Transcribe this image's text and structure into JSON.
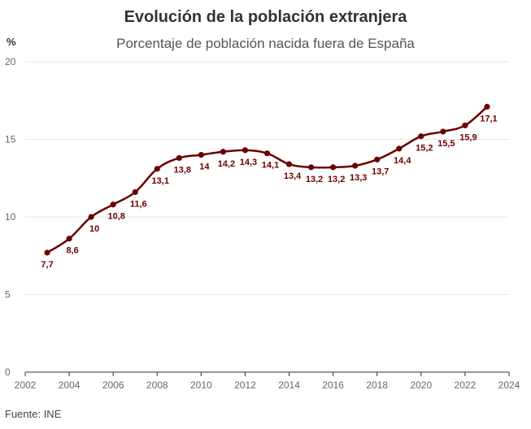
{
  "chart_data": {
    "type": "line",
    "title": "Evolución de la población extranjera",
    "subtitle": "Porcentaje de población nacida fuera de España",
    "ylabel": "%",
    "xlabel": "",
    "x": [
      2003,
      2004,
      2005,
      2006,
      2007,
      2008,
      2009,
      2010,
      2011,
      2012,
      2013,
      2014,
      2015,
      2016,
      2017,
      2018,
      2019,
      2020,
      2021,
      2022,
      2023
    ],
    "values": [
      7.7,
      8.6,
      10,
      10.8,
      11.6,
      13.1,
      13.8,
      14,
      14.2,
      14.3,
      14.1,
      13.4,
      13.2,
      13.2,
      13.3,
      13.7,
      14.4,
      15.2,
      15.5,
      15.9,
      17.1
    ],
    "data_labels": [
      "7,7",
      "8,6",
      "10",
      "10,8",
      "11,6",
      "13,1",
      "13,8",
      "14",
      "14,2",
      "14,3",
      "14,1",
      "13,4",
      "13,2",
      "13,2",
      "13,3",
      "13,7",
      "14,4",
      "15,2",
      "15,5",
      "15,9",
      "17,1"
    ],
    "xlim": [
      2002,
      2024
    ],
    "ylim": [
      0,
      20
    ],
    "xticks": [
      "2002",
      "2004",
      "2006",
      "2008",
      "2010",
      "2012",
      "2014",
      "2016",
      "2018",
      "2020",
      "2022",
      "2024"
    ],
    "yticks": [
      "0",
      "5",
      "10",
      "15",
      "20"
    ],
    "line_color": "#6b0000",
    "grid": true,
    "source": "Fuente: INE"
  }
}
